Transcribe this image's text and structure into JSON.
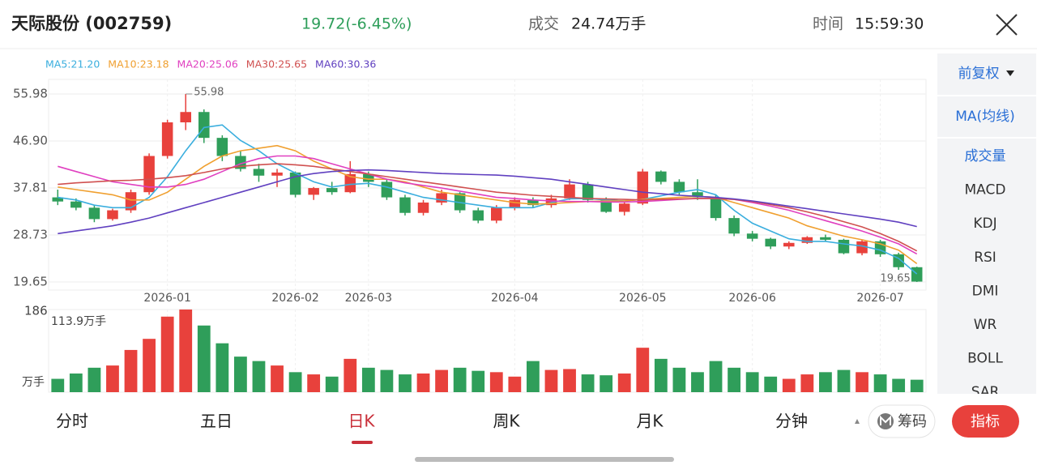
{
  "header": {
    "title": "天际股份 (002759)",
    "price": "19.72(-6.45%)",
    "volume_label": "成交",
    "volume_value": "24.74万手",
    "time_label": "时间",
    "time_value": "15:59:30"
  },
  "chart_data": {
    "type": "candlestick",
    "up_color": "#e8413c",
    "down_color": "#2f9e5a",
    "xlim": [
      -0.5,
      47.5
    ],
    "xticks": [
      {
        "value": 6,
        "label": "2026-01"
      },
      {
        "value": 13,
        "label": "2026-02"
      },
      {
        "value": 17,
        "label": "2026-03"
      },
      {
        "value": 25,
        "label": "2026-04"
      },
      {
        "value": 32,
        "label": "2026-05"
      },
      {
        "value": 38,
        "label": "2026-06"
      },
      {
        "value": 45,
        "label": "2026-07"
      }
    ],
    "ylim": [
      18.08,
      58.8
    ],
    "yticks": [
      55.98,
      {
        "value": 46.9,
        "label": "46.90"
      },
      37.81,
      28.73,
      19.65
    ],
    "max_label": "55.98",
    "min_label": "19.65",
    "ohlc": [
      [
        36,
        37.5,
        34.5,
        35.2
      ],
      [
        35.2,
        35.8,
        33.5,
        34
      ],
      [
        34,
        34.5,
        31.2,
        31.8
      ],
      [
        31.8,
        33.8,
        31.5,
        33.5
      ],
      [
        33.5,
        37.5,
        33,
        37
      ],
      [
        37,
        44.5,
        36.5,
        44
      ],
      [
        44,
        51,
        43.5,
        50.5
      ],
      [
        50.5,
        55.98,
        49,
        52.5
      ],
      [
        52.5,
        53,
        46.5,
        47.5
      ],
      [
        47.5,
        48,
        43,
        44
      ],
      [
        44,
        45,
        41,
        41.5
      ],
      [
        41.5,
        42.5,
        39,
        40.2
      ],
      [
        40.2,
        41.5,
        38,
        40.8
      ],
      [
        40.8,
        41,
        36,
        36.5
      ],
      [
        36.5,
        38,
        35.5,
        37.8
      ],
      [
        37.8,
        39,
        36.5,
        37
      ],
      [
        37,
        43,
        36.8,
        40.5
      ],
      [
        40.5,
        41,
        38,
        39
      ],
      [
        39,
        39.5,
        35.5,
        36
      ],
      [
        36,
        36.5,
        32.5,
        33
      ],
      [
        33,
        35.5,
        32.5,
        35
      ],
      [
        35,
        37.5,
        34.5,
        36.8
      ],
      [
        36.8,
        37,
        33,
        33.5
      ],
      [
        33.5,
        34,
        31,
        31.5
      ],
      [
        31.5,
        34.5,
        31,
        34
      ],
      [
        34,
        36,
        33.5,
        35.5
      ],
      [
        35.5,
        36,
        34,
        34.5
      ],
      [
        34.5,
        36.5,
        34,
        35.8
      ],
      [
        35.8,
        39.5,
        35.5,
        38.5
      ],
      [
        38.5,
        39,
        35,
        35.5
      ],
      [
        35.5,
        36,
        33,
        33.2
      ],
      [
        33.2,
        35,
        32.5,
        34.8
      ],
      [
        34.8,
        41.5,
        34.5,
        41
      ],
      [
        41,
        41.2,
        38.5,
        39
      ],
      [
        39,
        39.5,
        36.5,
        37
      ],
      [
        37,
        39.5,
        35.5,
        36
      ],
      [
        36,
        36.5,
        31.5,
        32
      ],
      [
        32,
        32.5,
        28.5,
        29
      ],
      [
        29,
        29.5,
        27.5,
        28
      ],
      [
        28,
        28.2,
        26,
        26.5
      ],
      [
        26.5,
        27.5,
        26,
        27.2
      ],
      [
        27.2,
        28.5,
        27,
        28.3
      ],
      [
        28.3,
        28.8,
        27.5,
        27.8
      ],
      [
        27.8,
        28,
        25,
        25.2
      ],
      [
        25.2,
        27.8,
        24.8,
        27.5
      ],
      [
        27.5,
        27.8,
        24.5,
        25
      ],
      [
        25,
        25.3,
        22,
        22.5
      ],
      [
        22.5,
        22.6,
        19.65,
        19.72
      ]
    ],
    "ma_series": [
      {
        "name": "MA5:21.20",
        "color": "#3aaede",
        "values": [
          36,
          35.5,
          34.5,
          34,
          34,
          36,
          40,
          45,
          49.5,
          50,
          47,
          45,
          42.5,
          40.7,
          39,
          38,
          38.5,
          38.7,
          38,
          37,
          36,
          35.5,
          35,
          34.5,
          34,
          34,
          34,
          35,
          35.7,
          35.8,
          35.5,
          35.3,
          35.6,
          36.3,
          37,
          37.5,
          36.5,
          33.5,
          31,
          29.5,
          28,
          27.5,
          27.5,
          27,
          26.6,
          25.8,
          24.2,
          21.2
        ]
      },
      {
        "name": "MA10:23.18",
        "color": "#f0a030",
        "values": [
          38,
          37.5,
          37,
          36.5,
          35.5,
          35.5,
          37,
          39.5,
          42,
          44,
          45,
          45.5,
          46,
          45,
          43,
          41.5,
          40,
          39.5,
          39.5,
          39,
          38,
          37,
          36.5,
          36,
          35.5,
          35,
          34.7,
          34.8,
          35,
          35.2,
          35.3,
          35.3,
          35.6,
          35.8,
          36,
          36.2,
          36,
          35,
          34,
          33,
          32,
          30.5,
          29.5,
          28.5,
          27.8,
          27,
          25.8,
          23.18
        ]
      },
      {
        "name": "MA20:25.06",
        "color": "#e040c0",
        "values": [
          42,
          41,
          40,
          39,
          38.5,
          38,
          38,
          38.5,
          39.5,
          41,
          42.5,
          43.5,
          44,
          44,
          43.5,
          42.5,
          41.5,
          40.5,
          39.5,
          38.8,
          38.3,
          37.8,
          37.2,
          36.6,
          36,
          35.8,
          35.5,
          35.3,
          35.2,
          35.2,
          35.1,
          35.1,
          35.2,
          35.4,
          35.6,
          35.8,
          35.8,
          35.6,
          35,
          34.3,
          33.5,
          32.5,
          31.5,
          30.5,
          29.5,
          28.3,
          27,
          25.06
        ]
      },
      {
        "name": "MA30:25.65",
        "color": "#d05050",
        "values": [
          38.5,
          38.8,
          39,
          39.2,
          39.3,
          39.5,
          39.8,
          40.2,
          40.8,
          41.5,
          42,
          42.3,
          42.5,
          42.3,
          42,
          41.5,
          41,
          40.5,
          40,
          39.5,
          39,
          38.5,
          38,
          37.5,
          37,
          36.7,
          36.4,
          36.2,
          36,
          35.8,
          35.7,
          35.6,
          35.5,
          35.6,
          35.7,
          35.8,
          35.8,
          35.6,
          35.2,
          34.6,
          34,
          33.2,
          32.3,
          31.3,
          30.3,
          29,
          27.5,
          25.65
        ]
      },
      {
        "name": "MA60:30.36",
        "color": "#6040c0",
        "values": [
          29,
          29.5,
          30,
          30.5,
          31.2,
          32,
          33,
          34,
          35,
          36,
          37,
          38,
          39,
          40,
          40.6,
          41,
          41.2,
          41.3,
          41.2,
          41,
          40.8,
          40.6,
          40.5,
          40.4,
          40.3,
          40.1,
          39.8,
          39.5,
          39,
          38.5,
          38,
          37.5,
          37,
          36.7,
          36.4,
          36.2,
          36,
          35.7,
          35.3,
          34.8,
          34.3,
          33.8,
          33.3,
          32.8,
          32.3,
          31.8,
          31.2,
          30.36
        ]
      }
    ],
    "volume": {
      "values": [
        30,
        42,
        55,
        60,
        95,
        120,
        170,
        186,
        150,
        110,
        80,
        70,
        60,
        45,
        40,
        35,
        75,
        55,
        50,
        40,
        42,
        50,
        55,
        48,
        45,
        35,
        70,
        50,
        52,
        40,
        38,
        42,
        100,
        75,
        55,
        45,
        70,
        55,
        45,
        35,
        30,
        40,
        45,
        50,
        45,
        40,
        30,
        28
      ],
      "ylim": [
        0,
        186
      ],
      "yticks": [
        186
      ],
      "unit": "万手",
      "annotation": "113.9万手"
    }
  },
  "sidebar": {
    "adjust": "前复权",
    "items": [
      "MA(均线)",
      "成交量",
      "MACD",
      "KDJ",
      "RSI",
      "DMI",
      "WR",
      "BOLL",
      "SAR"
    ]
  },
  "tabs": [
    "分时",
    "五日",
    "日K",
    "周K",
    "月K",
    "分钟"
  ],
  "buttons": {
    "chips": "筹码",
    "indicators": "指标"
  }
}
